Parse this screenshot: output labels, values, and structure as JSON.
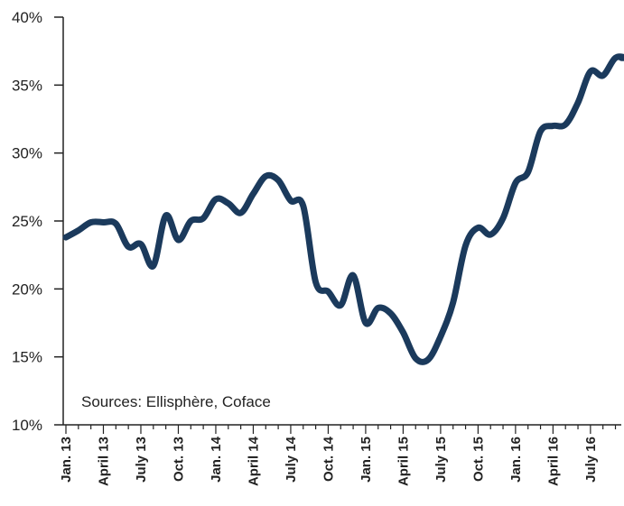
{
  "chart_data": {
    "type": "line",
    "title": "",
    "xlabel": "",
    "ylabel": "",
    "source_note": "Sources: Ellisphère, Coface",
    "y_ticks": [
      "10%",
      "15%",
      "20%",
      "25%",
      "30%",
      "35%",
      "40%"
    ],
    "ylim": [
      10,
      40
    ],
    "x_ticks": [
      "Jan. 13",
      "April 13",
      "July 13",
      "Oct. 13",
      "Jan. 14",
      "April 14",
      "July 14",
      "Oct. 14",
      "Jan. 15",
      "April 15",
      "July 15",
      "Oct. 15",
      "Jan. 16",
      "April 16",
      "July 16"
    ],
    "grid": false,
    "legend": "none",
    "line_color": "#1b3a5c",
    "series": [
      {
        "x_months": [
          0,
          1,
          2,
          3,
          4,
          5,
          6,
          7,
          8,
          9,
          10,
          11,
          12,
          13,
          14,
          15,
          16,
          17,
          18,
          19,
          20,
          21,
          22,
          23,
          24,
          25,
          26,
          27,
          28,
          29,
          30,
          31,
          32,
          33,
          34,
          35,
          36,
          37,
          38,
          39,
          40,
          41,
          42,
          43,
          44,
          45,
          46,
          47
        ],
        "values": [
          23.8,
          24.3,
          24.9,
          24.9,
          24.8,
          23.1,
          23.3,
          21.7,
          25.4,
          23.6,
          25.0,
          25.2,
          26.6,
          26.3,
          25.6,
          27.0,
          28.3,
          28.0,
          26.5,
          26.1,
          20.5,
          19.8,
          18.8,
          21.0,
          17.5,
          18.6,
          18.2,
          16.8,
          14.9,
          14.8,
          16.5,
          19.0,
          23.2,
          24.5,
          24.0,
          25.2,
          27.8,
          28.6,
          31.6,
          32.0,
          32.1,
          33.7,
          36.0,
          35.7,
          37.0,
          37.0,
          37.0,
          37.0
        ]
      }
    ]
  }
}
